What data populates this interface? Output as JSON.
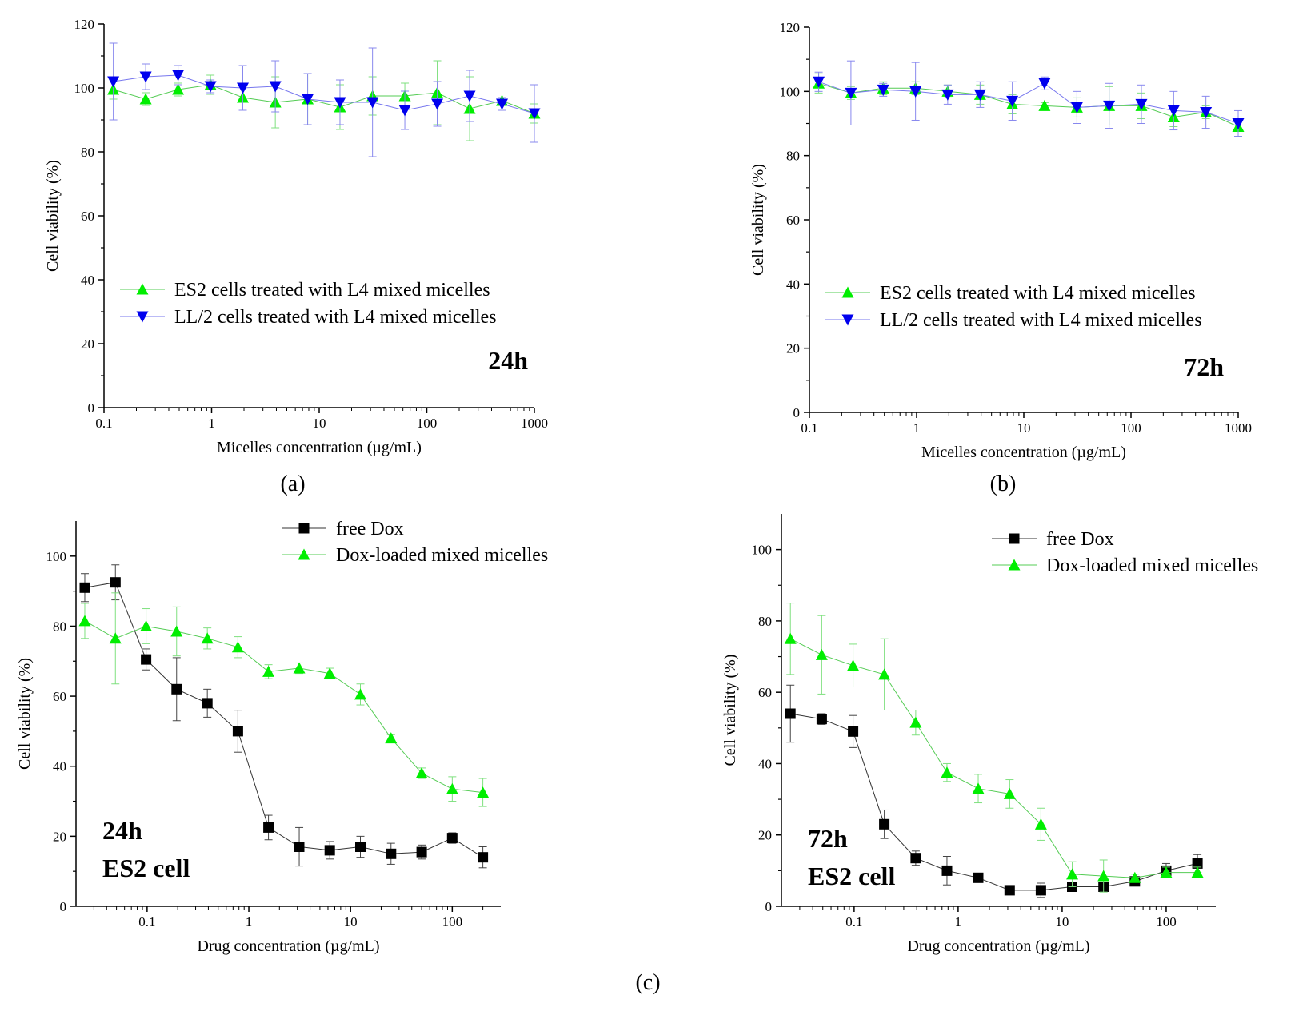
{
  "figure": {
    "panel_labels": [
      "(a)",
      "(b)",
      "(c)"
    ]
  },
  "colors": {
    "green": "#00ee00",
    "blue": "#0000ee",
    "black": "#000000",
    "green_line": "#55cc55",
    "blue_line": "#7777ee"
  },
  "chart_data": [
    {
      "id": "a",
      "type": "line",
      "title": "24h",
      "time_label": [
        "24h"
      ],
      "xlabel": "Micelles concentration (µg/mL)",
      "ylabel": "Cell viability (%)",
      "xscale": "log",
      "xlim": [
        0.1,
        1000
      ],
      "ylim": [
        0,
        120
      ],
      "xticks": [
        0.1,
        1,
        10,
        100,
        1000
      ],
      "xtick_labels": [
        "0.1",
        "1",
        "10",
        "100",
        "1000"
      ],
      "yticks": [
        0,
        20,
        40,
        60,
        80,
        100,
        120
      ],
      "ytick_labels": [
        "0",
        "20",
        "40",
        "60",
        "80",
        "100",
        "120"
      ],
      "legend_position": "center-right",
      "series": [
        {
          "name": "ES2 cells treated with L4 mixed micelles",
          "marker": "triangle-up",
          "color": "green",
          "x": [
            0.122,
            0.244,
            0.488,
            0.977,
            1.95,
            3.91,
            7.81,
            15.6,
            31.3,
            62.5,
            125,
            250,
            500,
            1000
          ],
          "y": [
            99.5,
            96.5,
            99.5,
            101,
            97,
            95.5,
            96.5,
            94,
            97.5,
            97.5,
            98.5,
            93.5,
            96,
            92
          ],
          "err": [
            3,
            2,
            2,
            3,
            4,
            8,
            8,
            7,
            6,
            4,
            10,
            10,
            1,
            3
          ]
        },
        {
          "name": "LL/2 cells treated with L4 mixed micelles",
          "marker": "triangle-down",
          "color": "blue",
          "x": [
            0.122,
            0.244,
            0.488,
            0.977,
            1.95,
            3.91,
            7.81,
            15.6,
            31.3,
            62.5,
            125,
            250,
            500,
            1000
          ],
          "y": [
            102,
            103.5,
            104,
            100.5,
            100,
            100.5,
            96.5,
            95.5,
            95.5,
            93,
            95,
            97.5,
            95,
            92
          ],
          "err": [
            12,
            4,
            3,
            2,
            7,
            8,
            8,
            7,
            17,
            6,
            7,
            8,
            2,
            9
          ]
        }
      ]
    },
    {
      "id": "b",
      "type": "line",
      "title": "72h",
      "time_label": [
        "72h"
      ],
      "xlabel": "Micelles concentration (µg/mL)",
      "ylabel": "Cell viability (%)",
      "xscale": "log",
      "xlim": [
        0.1,
        1000
      ],
      "ylim": [
        0,
        120
      ],
      "xticks": [
        0.1,
        1,
        10,
        100,
        1000
      ],
      "xtick_labels": [
        "0.1",
        "1",
        "10",
        "100",
        "1000"
      ],
      "yticks": [
        0,
        20,
        40,
        60,
        80,
        100,
        120
      ],
      "ytick_labels": [
        "0",
        "20",
        "40",
        "60",
        "80",
        "100",
        "120"
      ],
      "legend_position": "center-right",
      "series": [
        {
          "name": "ES2 cells treated with L4 mixed micelles",
          "marker": "triangle-up",
          "color": "green",
          "x": [
            0.122,
            0.244,
            0.488,
            0.977,
            1.95,
            3.91,
            7.81,
            15.6,
            31.3,
            62.5,
            125,
            250,
            500,
            1000
          ],
          "y": [
            102.5,
            99.5,
            101,
            101,
            100,
            99,
            96,
            95.5,
            95,
            95.5,
            95.5,
            92,
            93.5,
            89
          ],
          "err": [
            3,
            2,
            2,
            2,
            2,
            3,
            3,
            1,
            3,
            6,
            4,
            3,
            2,
            3
          ]
        },
        {
          "name": "LL/2 cells treated with L4 mixed micelles",
          "marker": "triangle-down",
          "color": "blue",
          "x": [
            0.122,
            0.244,
            0.488,
            0.977,
            1.95,
            3.91,
            7.81,
            15.6,
            31.3,
            62.5,
            125,
            250,
            500,
            1000
          ],
          "y": [
            103,
            99.5,
            100.5,
            100,
            99,
            99,
            97,
            102.5,
            95,
            95.5,
            96,
            94,
            93.5,
            90
          ],
          "err": [
            3,
            10,
            2,
            9,
            3,
            4,
            6,
            2,
            5,
            7,
            6,
            6,
            5,
            4
          ]
        }
      ]
    },
    {
      "id": "c-left",
      "type": "line",
      "title": "24h ES2 cell",
      "time_label": [
        "24h",
        "ES2 cell"
      ],
      "xlabel": "Drug concentration (µg/mL)",
      "ylabel": "Cell viability (%)",
      "xscale": "log",
      "xlim": [
        0.02,
        300
      ],
      "ylim": [
        0,
        110
      ],
      "xticks": [
        0.1,
        1,
        10,
        100
      ],
      "xtick_labels": [
        "0.1",
        "1",
        "10",
        "100"
      ],
      "yticks": [
        0,
        20,
        40,
        60,
        80,
        100
      ],
      "ytick_labels": [
        "0",
        "20",
        "40",
        "60",
        "80",
        "100"
      ],
      "legend_position": "top-right",
      "series": [
        {
          "name": "free Dox",
          "marker": "square",
          "color": "black",
          "x": [
            0.0244,
            0.0488,
            0.0977,
            0.195,
            0.391,
            0.781,
            1.56,
            3.13,
            6.25,
            12.5,
            25,
            50,
            100,
            200
          ],
          "y": [
            91,
            92.5,
            70.5,
            62,
            58,
            50,
            22.5,
            17,
            16,
            17,
            15,
            15.5,
            19.5,
            14
          ],
          "err": [
            4,
            5,
            3,
            9,
            4,
            6,
            3.5,
            5.5,
            2.5,
            3,
            3,
            2,
            1.5,
            3
          ]
        },
        {
          "name": "Dox-loaded mixed micelles",
          "marker": "triangle-up",
          "color": "green",
          "x": [
            0.0244,
            0.0488,
            0.0977,
            0.195,
            0.391,
            0.781,
            1.56,
            3.13,
            6.25,
            12.5,
            25,
            50,
            100,
            200
          ],
          "y": [
            81.5,
            76.5,
            80,
            78.5,
            76.5,
            74,
            67,
            68,
            66.5,
            60.5,
            48,
            38,
            33.5,
            32.5
          ],
          "err": [
            5,
            13,
            5,
            7,
            3,
            3,
            2,
            1.5,
            1.5,
            3,
            1,
            1.5,
            3.5,
            4
          ]
        }
      ]
    },
    {
      "id": "c-right",
      "type": "line",
      "title": "72h ES2 cell",
      "time_label": [
        "72h",
        "ES2 cell"
      ],
      "xlabel": "Drug concentration (µg/mL)",
      "ylabel": "Cell viability (%)",
      "xscale": "log",
      "xlim": [
        0.02,
        300
      ],
      "ylim": [
        0,
        110
      ],
      "xticks": [
        0.1,
        1,
        10,
        100
      ],
      "xtick_labels": [
        "0.1",
        "1",
        "10",
        "100"
      ],
      "yticks": [
        0,
        20,
        40,
        60,
        80,
        100
      ],
      "ytick_labels": [
        "0",
        "20",
        "40",
        "60",
        "80",
        "100"
      ],
      "legend_position": "top-right",
      "series": [
        {
          "name": "free Dox",
          "marker": "square",
          "color": "black",
          "x": [
            0.0244,
            0.0488,
            0.0977,
            0.195,
            0.391,
            0.781,
            1.56,
            3.13,
            6.25,
            12.5,
            25,
            50,
            100,
            200
          ],
          "y": [
            54,
            52.5,
            49,
            23,
            13.5,
            10,
            8,
            4.5,
            4.5,
            5.5,
            5.5,
            7,
            10,
            12
          ],
          "err": [
            8,
            1.5,
            4.5,
            4,
            2,
            4,
            1,
            0.5,
            2,
            1,
            1,
            1,
            2,
            2.5
          ]
        },
        {
          "name": "Dox-loaded mixed micelles",
          "marker": "triangle-up",
          "color": "green",
          "x": [
            0.0244,
            0.0488,
            0.0977,
            0.195,
            0.391,
            0.781,
            1.56,
            3.13,
            6.25,
            12.5,
            25,
            50,
            100,
            200
          ],
          "y": [
            75,
            70.5,
            67.5,
            65,
            51.5,
            37.5,
            33,
            31.5,
            23,
            9,
            8.5,
            8,
            9.5,
            9.5
          ],
          "err": [
            10,
            11,
            6,
            10,
            3.5,
            2.5,
            4,
            4,
            4.5,
            3.5,
            4.5,
            1,
            1.5,
            1.5
          ]
        }
      ]
    }
  ]
}
